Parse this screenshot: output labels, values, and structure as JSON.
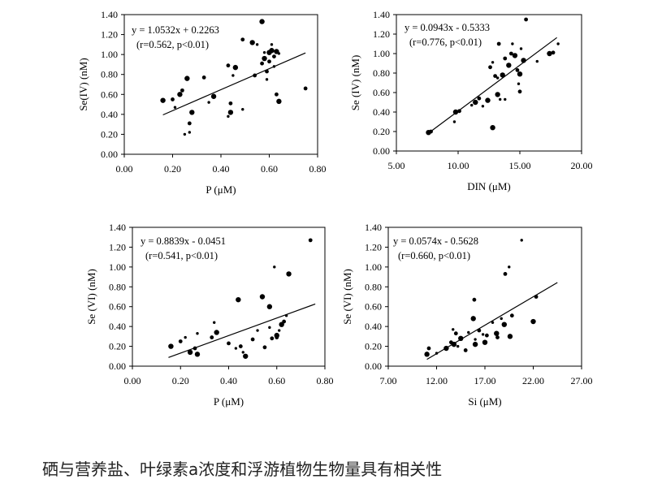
{
  "caption": "硒与营养盐、叶绿素a浓度和浮游植物生物量具有相关性",
  "chart_data": [
    {
      "type": "scatter",
      "xlabel": "P (μM)",
      "ylabel": "Se(IV) (nM)",
      "xlim": [
        0,
        0.8
      ],
      "ylim": [
        0,
        1.4
      ],
      "xticks": [
        "0.00",
        "0.20",
        "0.40",
        "0.60",
        "0.80"
      ],
      "yticks": [
        "0.00",
        "0.20",
        "0.40",
        "0.60",
        "0.80",
        "1.00",
        "1.20",
        "1.40"
      ],
      "annotation": [
        "y = 1.0532x + 0.2263",
        "(r=0.562, p<0.01)"
      ],
      "trendline": {
        "slope": 1.0532,
        "intercept": 0.2263,
        "x_range": [
          0.16,
          0.75
        ]
      },
      "points": [
        [
          0.16,
          0.54
        ],
        [
          0.2,
          0.55
        ],
        [
          0.21,
          0.47
        ],
        [
          0.23,
          0.6
        ],
        [
          0.24,
          0.64
        ],
        [
          0.25,
          0.2
        ],
        [
          0.26,
          0.76
        ],
        [
          0.27,
          0.31
        ],
        [
          0.27,
          0.22
        ],
        [
          0.28,
          0.42
        ],
        [
          0.33,
          0.77
        ],
        [
          0.35,
          0.52
        ],
        [
          0.37,
          0.58
        ],
        [
          0.43,
          0.89
        ],
        [
          0.43,
          0.38
        ],
        [
          0.44,
          0.42
        ],
        [
          0.44,
          0.51
        ],
        [
          0.45,
          0.79
        ],
        [
          0.46,
          0.87
        ],
        [
          0.49,
          1.15
        ],
        [
          0.49,
          0.45
        ],
        [
          0.53,
          1.12
        ],
        [
          0.54,
          0.79
        ],
        [
          0.55,
          1.1
        ],
        [
          0.57,
          1.33
        ],
        [
          0.57,
          0.91
        ],
        [
          0.58,
          1.02
        ],
        [
          0.58,
          0.96
        ],
        [
          0.59,
          0.83
        ],
        [
          0.59,
          0.75
        ],
        [
          0.6,
          1.02
        ],
        [
          0.6,
          0.93
        ],
        [
          0.61,
          1.1
        ],
        [
          0.61,
          1.04
        ],
        [
          0.62,
          0.98
        ],
        [
          0.62,
          0.88
        ],
        [
          0.63,
          1.03
        ],
        [
          0.63,
          0.6
        ],
        [
          0.64,
          1.01
        ],
        [
          0.64,
          0.53
        ],
        [
          0.75,
          0.66
        ]
      ]
    },
    {
      "type": "scatter",
      "xlabel": "DIN (μM)",
      "ylabel": "Se (IV) (nM)",
      "xlim": [
        5,
        20
      ],
      "ylim": [
        0,
        1.4
      ],
      "xticks": [
        "5.00",
        "10.00",
        "15.00",
        "20.00"
      ],
      "yticks": [
        "0.00",
        "0.20",
        "0.40",
        "0.60",
        "0.80",
        "1.00",
        "1.20",
        "1.40"
      ],
      "annotation": [
        "y = 0.0943x - 0.5333",
        "(r=0.776, p<0.01)"
      ],
      "trendline": {
        "slope": 0.0943,
        "intercept": -0.5333,
        "x_range": [
          7.5,
          18.0
        ]
      },
      "points": [
        [
          7.6,
          0.19
        ],
        [
          7.8,
          0.2
        ],
        [
          9.7,
          0.3
        ],
        [
          9.8,
          0.4
        ],
        [
          10.1,
          0.41
        ],
        [
          11.1,
          0.47
        ],
        [
          11.4,
          0.5
        ],
        [
          11.7,
          0.54
        ],
        [
          12.0,
          0.46
        ],
        [
          12.4,
          0.52
        ],
        [
          12.6,
          0.86
        ],
        [
          12.8,
          0.91
        ],
        [
          12.8,
          0.24
        ],
        [
          13.0,
          0.77
        ],
        [
          13.2,
          0.75
        ],
        [
          13.2,
          0.58
        ],
        [
          13.3,
          1.1
        ],
        [
          13.4,
          0.53
        ],
        [
          13.6,
          0.78
        ],
        [
          13.8,
          0.95
        ],
        [
          13.8,
          0.53
        ],
        [
          14.1,
          0.88
        ],
        [
          14.3,
          1.0
        ],
        [
          14.4,
          1.1
        ],
        [
          14.6,
          0.98
        ],
        [
          14.8,
          0.83
        ],
        [
          14.9,
          0.69
        ],
        [
          15.0,
          0.79
        ],
        [
          15.0,
          0.61
        ],
        [
          15.1,
          1.05
        ],
        [
          15.3,
          0.93
        ],
        [
          15.5,
          1.35
        ],
        [
          16.4,
          0.92
        ],
        [
          17.4,
          1.0
        ],
        [
          17.7,
          1.01
        ],
        [
          18.1,
          1.1
        ]
      ]
    },
    {
      "type": "scatter",
      "xlabel": "P (μM)",
      "ylabel": "Se (VI) (nM)",
      "xlim": [
        0,
        0.8
      ],
      "ylim": [
        0,
        1.4
      ],
      "xticks": [
        "0.00",
        "0.20",
        "0.40",
        "0.60",
        "0.80"
      ],
      "yticks": [
        "0.00",
        "0.20",
        "0.40",
        "0.60",
        "0.80",
        "1.00",
        "1.20",
        "1.40"
      ],
      "annotation": [
        "y = 0.8839x - 0.0451",
        "(r=0.541, p<0.01)"
      ],
      "trendline": {
        "slope": 0.8839,
        "intercept": -0.0451,
        "x_range": [
          0.15,
          0.76
        ]
      },
      "points": [
        [
          0.16,
          0.2
        ],
        [
          0.2,
          0.25
        ],
        [
          0.22,
          0.29
        ],
        [
          0.24,
          0.14
        ],
        [
          0.26,
          0.18
        ],
        [
          0.27,
          0.33
        ],
        [
          0.27,
          0.12
        ],
        [
          0.33,
          0.29
        ],
        [
          0.34,
          0.44
        ],
        [
          0.35,
          0.34
        ],
        [
          0.4,
          0.23
        ],
        [
          0.43,
          0.18
        ],
        [
          0.44,
          0.67
        ],
        [
          0.45,
          0.2
        ],
        [
          0.46,
          0.14
        ],
        [
          0.47,
          0.1
        ],
        [
          0.5,
          0.27
        ],
        [
          0.52,
          0.36
        ],
        [
          0.54,
          0.7
        ],
        [
          0.55,
          0.19
        ],
        [
          0.57,
          0.39
        ],
        [
          0.57,
          0.6
        ],
        [
          0.58,
          0.28
        ],
        [
          0.59,
          1.0
        ],
        [
          0.6,
          0.31
        ],
        [
          0.6,
          0.29
        ],
        [
          0.61,
          0.36
        ],
        [
          0.62,
          0.42
        ],
        [
          0.63,
          0.45
        ],
        [
          0.64,
          0.51
        ],
        [
          0.65,
          0.93
        ],
        [
          0.74,
          1.27
        ]
      ]
    },
    {
      "type": "scatter",
      "xlabel": "Si (μM)",
      "ylabel": "Se (VI) (nM)",
      "xlim": [
        7,
        27
      ],
      "ylim": [
        0,
        1.4
      ],
      "xticks": [
        "7.00",
        "12.00",
        "17.00",
        "22.00",
        "27.00"
      ],
      "yticks": [
        "0.00",
        "0.20",
        "0.40",
        "0.60",
        "0.80",
        "1.00",
        "1.20",
        "1.40"
      ],
      "annotation": [
        "y = 0.0574x - 0.5628",
        "(r=0.660, p<0.01)"
      ],
      "trendline": {
        "slope": 0.0574,
        "intercept": -0.5628,
        "x_range": [
          11.0,
          24.5
        ]
      },
      "points": [
        [
          11.0,
          0.12
        ],
        [
          11.2,
          0.18
        ],
        [
          12.0,
          0.13
        ],
        [
          13.0,
          0.18
        ],
        [
          13.5,
          0.24
        ],
        [
          13.7,
          0.37
        ],
        [
          13.8,
          0.22
        ],
        [
          14.0,
          0.33
        ],
        [
          14.2,
          0.2
        ],
        [
          14.5,
          0.28
        ],
        [
          15.0,
          0.16
        ],
        [
          15.3,
          0.34
        ],
        [
          15.8,
          0.48
        ],
        [
          15.9,
          0.67
        ],
        [
          16.0,
          0.27
        ],
        [
          16.0,
          0.22
        ],
        [
          16.4,
          0.36
        ],
        [
          16.8,
          0.32
        ],
        [
          17.0,
          0.24
        ],
        [
          17.2,
          0.31
        ],
        [
          17.8,
          0.44
        ],
        [
          18.2,
          0.33
        ],
        [
          18.3,
          0.29
        ],
        [
          18.7,
          0.48
        ],
        [
          19.0,
          0.42
        ],
        [
          19.1,
          0.93
        ],
        [
          19.5,
          1.0
        ],
        [
          19.6,
          0.3
        ],
        [
          19.8,
          0.51
        ],
        [
          20.8,
          1.27
        ],
        [
          22.0,
          0.45
        ],
        [
          22.3,
          0.7
        ]
      ]
    }
  ]
}
